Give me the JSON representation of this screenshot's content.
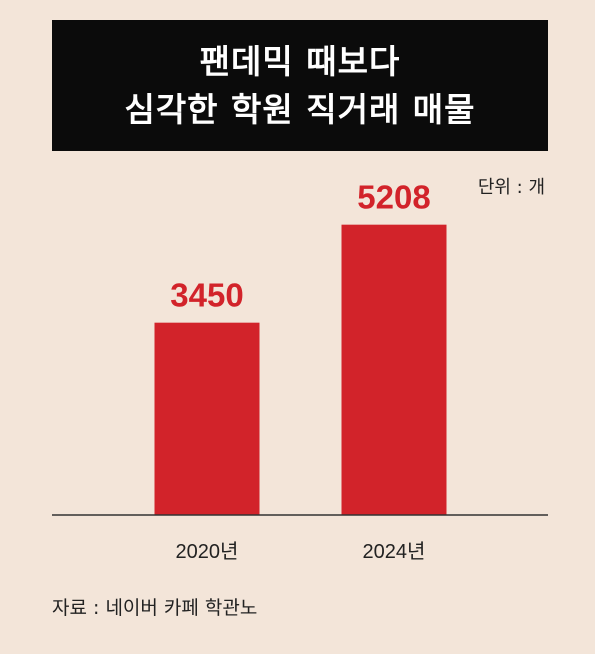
{
  "unit_label": "단위 : 개",
  "source": "자료 : 네이버 카페 학관노",
  "chart_data": {
    "type": "bar",
    "title": [
      "팬데믹 때보다",
      "심각한 학원 직거래 매물"
    ],
    "categories": [
      "2020년",
      "2024년"
    ],
    "values": [
      3450,
      5208
    ],
    "value_labels": [
      "3450",
      "5208"
    ],
    "ylim": [
      0,
      5830
    ],
    "grid": false,
    "colors": {
      "bar": "#d2232a",
      "value_label": "#d2232a"
    }
  }
}
